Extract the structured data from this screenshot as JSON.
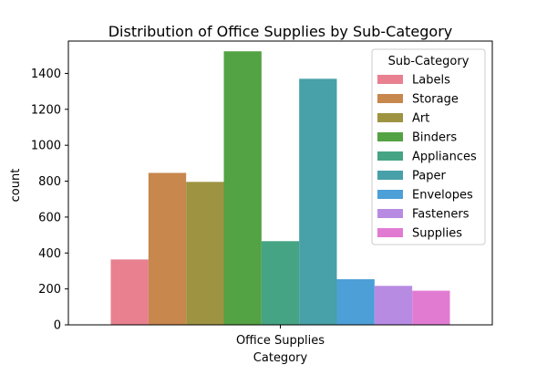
{
  "chart_data": {
    "type": "bar",
    "title": "Distribution of Office Supplies by Sub-Category",
    "xlabel": "Category",
    "ylabel": "count",
    "categories": [
      "Office Supplies"
    ],
    "ylim": [
      0,
      1580
    ],
    "yticks": [
      0,
      200,
      400,
      600,
      800,
      1000,
      1200,
      1400
    ],
    "grid": false,
    "legend": {
      "title": "Sub-Category",
      "placement": "top-right"
    },
    "series": [
      {
        "name": "Labels",
        "values": [
          364
        ],
        "color": "#e8808f"
      },
      {
        "name": "Storage",
        "values": [
          846
        ],
        "color": "#c7874d"
      },
      {
        "name": "Art",
        "values": [
          796
        ],
        "color": "#9e9341"
      },
      {
        "name": "Binders",
        "values": [
          1523
        ],
        "color": "#53a243"
      },
      {
        "name": "Appliances",
        "values": [
          466
        ],
        "color": "#45a483"
      },
      {
        "name": "Paper",
        "values": [
          1370
        ],
        "color": "#48a0a8"
      },
      {
        "name": "Envelopes",
        "values": [
          254
        ],
        "color": "#4d9fd8"
      },
      {
        "name": "Fasteners",
        "values": [
          217
        ],
        "color": "#b88be3"
      },
      {
        "name": "Supplies",
        "values": [
          190
        ],
        "color": "#e17bd2"
      }
    ]
  }
}
